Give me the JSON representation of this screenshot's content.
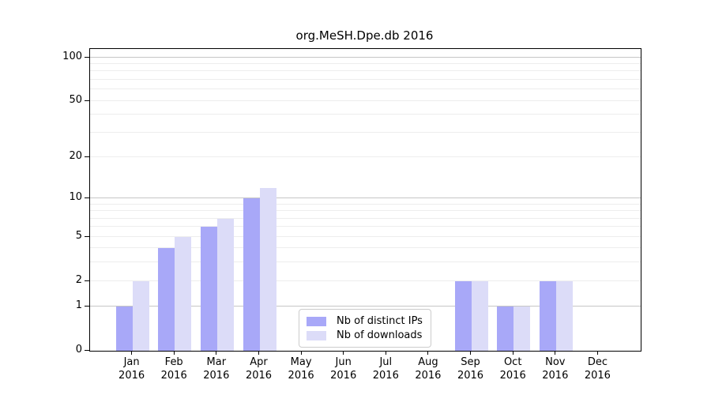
{
  "chart_data": {
    "type": "bar",
    "title": "org.MeSH.Dpe.db 2016",
    "x_tick_months": [
      "Jan",
      "Feb",
      "Mar",
      "Apr",
      "May",
      "Jun",
      "Jul",
      "Aug",
      "Sep",
      "Oct",
      "Nov",
      "Dec"
    ],
    "x_tick_year": "2016",
    "series": [
      {
        "name": "Nb of distinct IPs",
        "color": "#a8a8f8",
        "values": [
          1,
          4,
          6,
          10,
          0,
          0,
          0,
          0,
          2,
          1,
          2,
          0
        ]
      },
      {
        "name": "Nb of downloads",
        "color": "#dcdcf8",
        "values": [
          2,
          5,
          7,
          12,
          0,
          0,
          0,
          0,
          2,
          1,
          2,
          0
        ]
      }
    ],
    "y_axis": {
      "scale": "log1p",
      "ylim": [
        0,
        114
      ],
      "tick_values": [
        0,
        1,
        2,
        5,
        10,
        20,
        50,
        100
      ],
      "major_gridlines": [
        1,
        10,
        100
      ],
      "minor_gridlines": [
        2,
        3,
        4,
        5,
        6,
        7,
        8,
        9,
        20,
        30,
        40,
        50,
        60,
        70,
        80,
        90
      ]
    },
    "legend_position": "lower center",
    "grid": true
  }
}
